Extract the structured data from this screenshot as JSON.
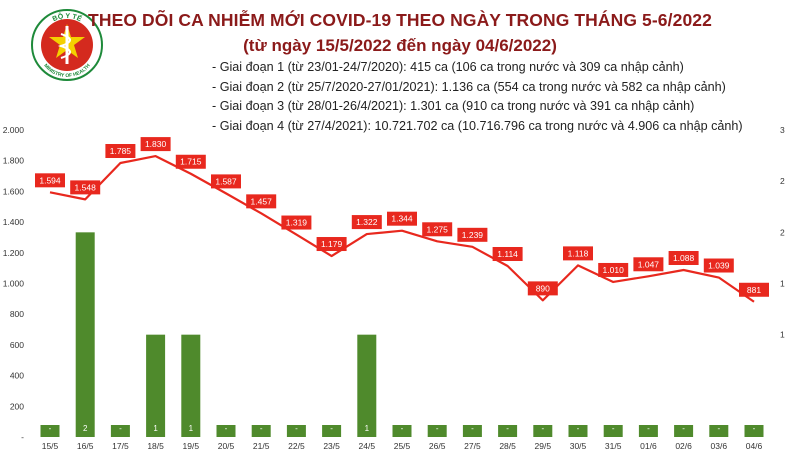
{
  "header": {
    "title": "THEO DÕI CA NHIỄM MỚI COVID-19 THEO NGÀY TRONG THÁNG 5-6/2022",
    "subtitle": "(từ ngày 15/5/2022 đến ngày 04/6/2022)",
    "logo_text_top": "BỘ Y TẾ",
    "logo_text_bottom": "MINISTRY OF HEALTH"
  },
  "notes": [
    "- Giai đoạn 1 (từ 23/01-24/7/2020): 415 ca (106 ca trong nước và 309 ca nhập cảnh)",
    "- Giai đoạn 2 (từ 25/7/2020-27/01/2021): 1.136 ca (554 ca trong nước và 582 ca nhập cảnh)",
    "- Giai đoạn 3 (từ 28/01-26/4/2021): 1.301 ca (910 ca trong nước và 391 ca nhập cảnh)",
    "- Giai đoạn 4 (từ 27/4/2021): 10.721.702 ca (10.716.796 ca trong nước và 4.906 ca nhập cảnh)"
  ],
  "colors": {
    "line": "#e8281e",
    "bar": "#4f8a2c",
    "title": "#8b1a1a",
    "logo_green": "#1e8a3a",
    "logo_red": "#d42a1e"
  },
  "chart_data": {
    "type": "bar+line",
    "categories": [
      "15/5",
      "16/5",
      "17/5",
      "18/5",
      "19/5",
      "20/5",
      "21/5",
      "22/5",
      "23/5",
      "24/5",
      "25/5",
      "26/5",
      "27/5",
      "28/5",
      "29/5",
      "30/5",
      "31/5",
      "01/6",
      "02/6",
      "03/6",
      "04/6"
    ],
    "line_series": {
      "values": [
        1594,
        1548,
        1785,
        1830,
        1715,
        1587,
        1457,
        1319,
        1179,
        1322,
        1344,
        1275,
        1239,
        1114,
        890,
        1118,
        1010,
        1047,
        1088,
        1039,
        881
      ],
      "labels": [
        "1.594",
        "1.548",
        "1.785",
        "1.830",
        "1.715",
        "1.587",
        "1.457",
        "1.319",
        "1.179",
        "1.322",
        "1.344",
        "1.275",
        "1.239",
        "1.114",
        "890",
        "1.118",
        "1.010",
        "1.047",
        "1.088",
        "1.039",
        "881"
      ]
    },
    "bar_series": {
      "values": [
        0,
        2,
        0,
        1,
        1,
        0,
        0,
        0,
        0,
        1,
        0,
        0,
        0,
        0,
        0,
        0,
        0,
        0,
        0,
        0,
        0
      ],
      "labels": [
        "-",
        "2",
        "-",
        "1",
        "1",
        "-",
        "-",
        "-",
        "-",
        "1",
        "-",
        "-",
        "-",
        "-",
        "-",
        "-",
        "-",
        "-",
        "-",
        "-",
        "-"
      ]
    },
    "left_axis": {
      "ylim": [
        0,
        2000
      ],
      "ticks": [
        0,
        200,
        400,
        600,
        800,
        1000,
        1200,
        1400,
        1600,
        1800,
        2000
      ],
      "tick_labels": [
        "-",
        "200",
        "400",
        "600",
        "800",
        "1.000",
        "1.200",
        "1.400",
        "1.600",
        "1.800",
        "2.000"
      ]
    },
    "right_axis": {
      "ylim": [
        0,
        3
      ],
      "ticks": [
        1,
        1.5,
        2,
        2.5,
        3
      ],
      "tick_labels": [
        "1",
        "1",
        "2",
        "2",
        "3"
      ]
    },
    "grid": false
  }
}
